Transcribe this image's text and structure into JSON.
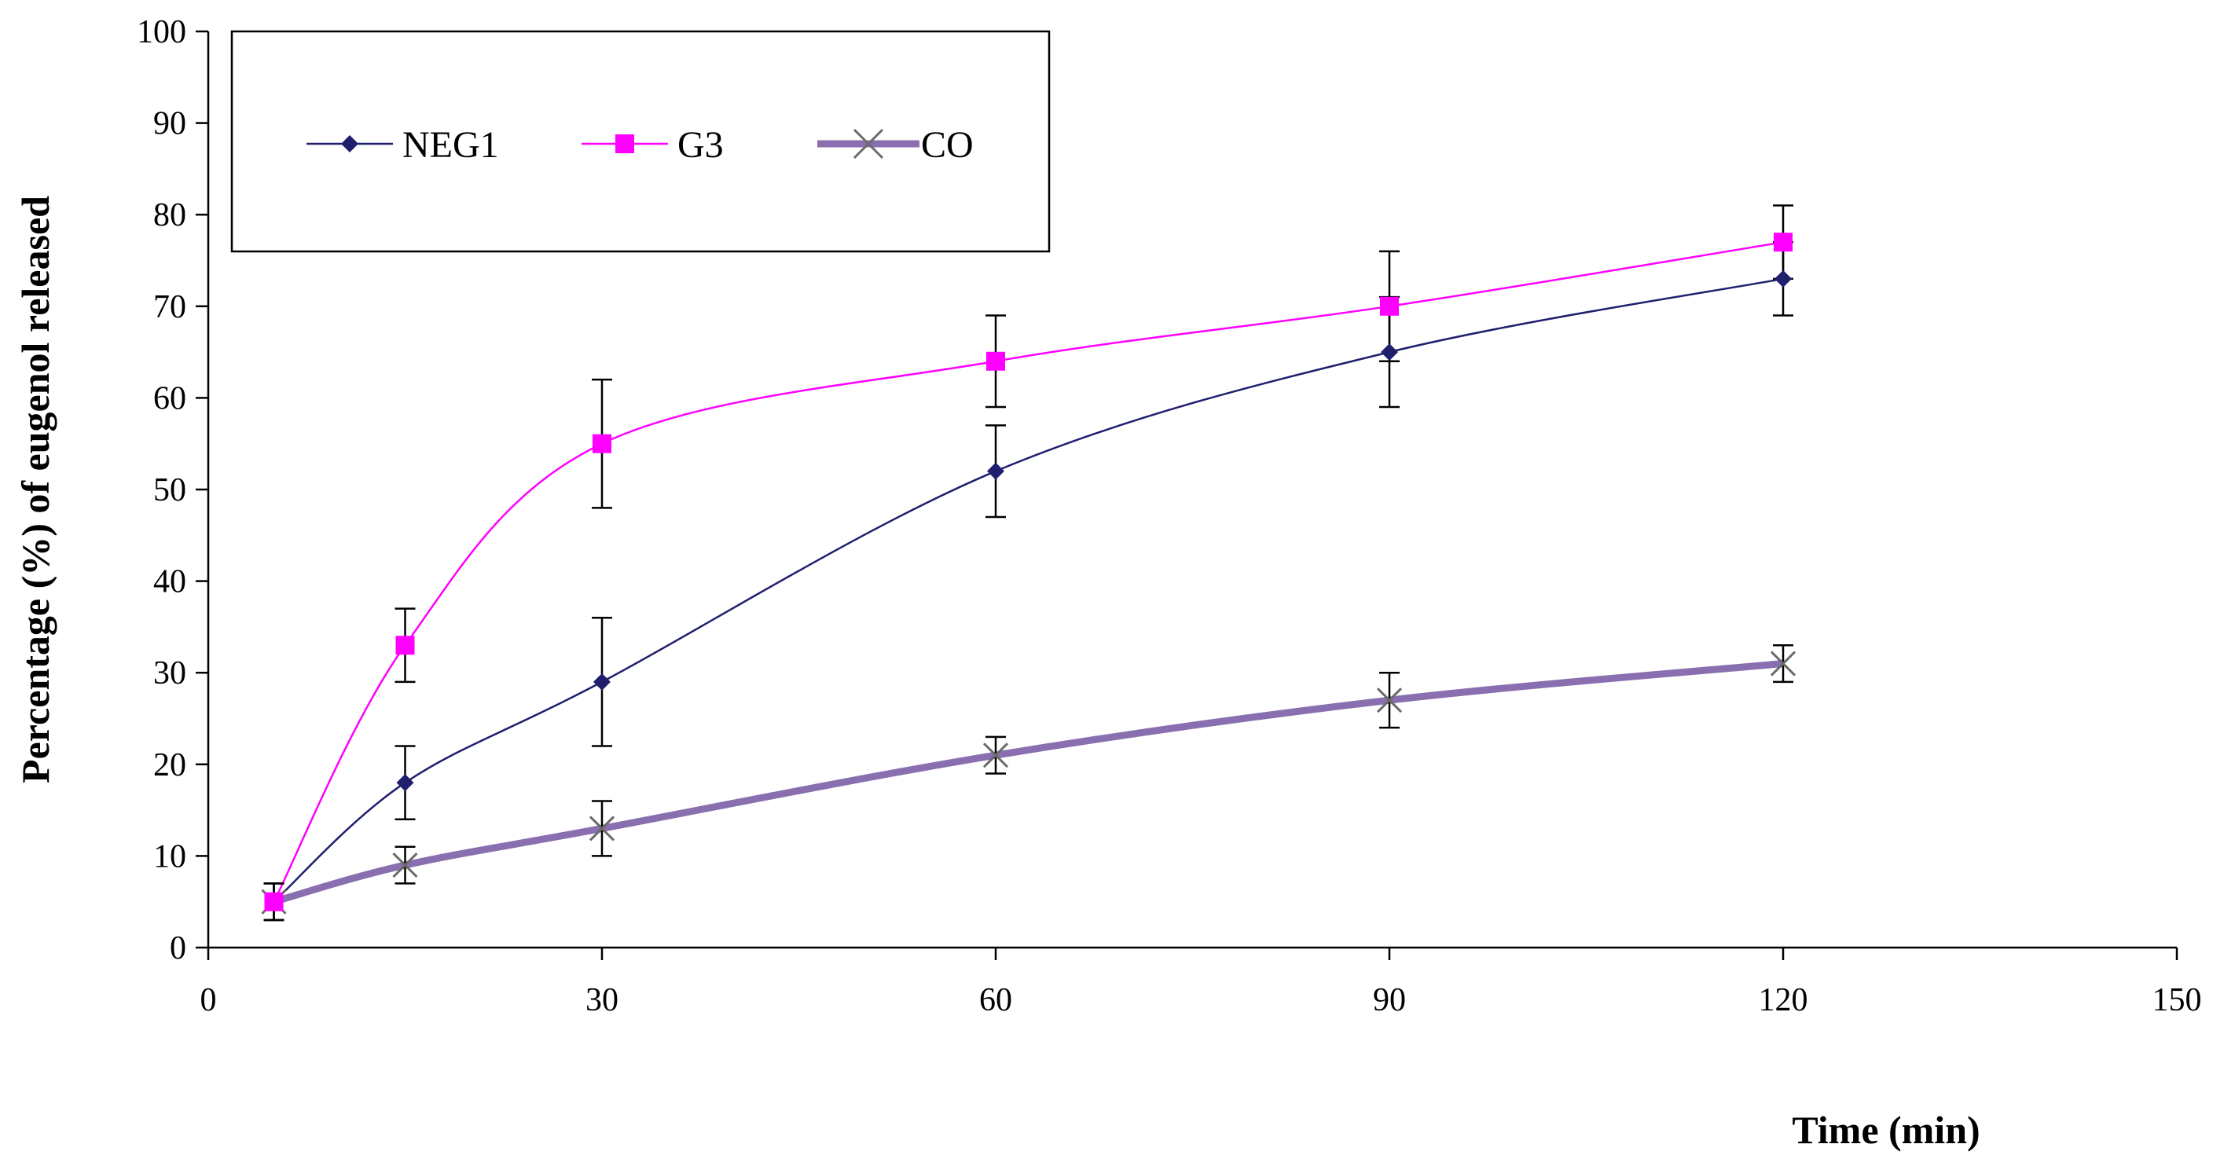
{
  "chart_data": {
    "type": "line",
    "title": "",
    "xlabel": "Time (min)",
    "ylabel": "Percentage (%) of eugenol released",
    "xlim": [
      0,
      150
    ],
    "ylim": [
      0,
      100
    ],
    "xticks": [
      0,
      30,
      60,
      90,
      120,
      150
    ],
    "yticks": [
      0,
      10,
      20,
      30,
      40,
      50,
      60,
      70,
      80,
      90,
      100
    ],
    "x": [
      5,
      15,
      30,
      60,
      90,
      120
    ],
    "legend_position": "top-left",
    "grid": false,
    "series": [
      {
        "name": "NEG1",
        "color": "#1f1f6e",
        "marker": "diamond",
        "values": [
          5,
          18,
          29,
          52,
          65,
          73
        ],
        "errors": [
          2,
          4,
          7,
          5,
          6,
          4
        ]
      },
      {
        "name": "G3",
        "color": "#ff00ff",
        "marker": "square",
        "values": [
          5,
          33,
          55,
          64,
          70,
          77
        ],
        "errors": [
          2,
          4,
          7,
          5,
          6,
          4
        ]
      },
      {
        "name": "CO",
        "color": "#8a6fb0",
        "marker": "x",
        "values": [
          5,
          9,
          13,
          21,
          27,
          31
        ],
        "errors": [
          2,
          2,
          3,
          2,
          3,
          2
        ]
      }
    ]
  }
}
